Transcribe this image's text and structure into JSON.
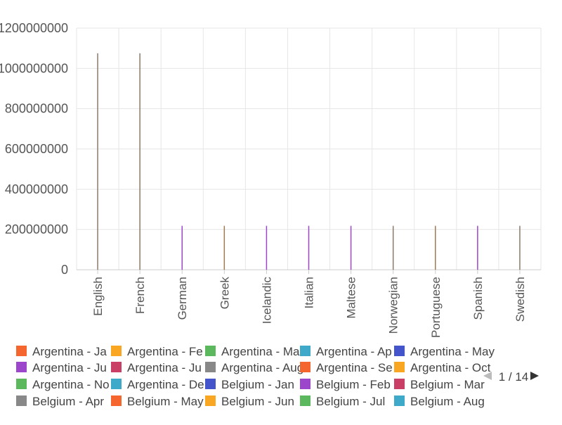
{
  "chart_data": {
    "type": "bar",
    "title": "",
    "xlabel": "",
    "ylabel": "",
    "ylim": [
      0,
      1200000000
    ],
    "yticks": [
      "0",
      "200000000",
      "400000000",
      "600000000",
      "800000000",
      "1000000000",
      "1200000000"
    ],
    "grid": true,
    "categories": [
      "English",
      "French",
      "German",
      "Greek",
      "Icelandic",
      "Italian",
      "Maltese",
      "Norwegian",
      "Portuguese",
      "Spanish",
      "Swedish"
    ],
    "values": [
      1075000000,
      1075000000,
      218000000,
      218000000,
      218000000,
      218000000,
      218000000,
      218000000,
      218000000,
      218000000,
      218000000
    ],
    "legend_placement": "bottom",
    "legend": [
      {
        "label": "Argentina - Ja",
        "color": "#f4662d"
      },
      {
        "label": "Argentina - Fe",
        "color": "#f9a723"
      },
      {
        "label": "Argentina - Ma",
        "color": "#5cb85c"
      },
      {
        "label": "Argentina - Ap",
        "color": "#3fa9c9"
      },
      {
        "label": "Argentina - May",
        "color": "#4455cc"
      },
      {
        "label": "Argentina - Ju",
        "color": "#9c46cc"
      },
      {
        "label": "Argentina - Ju",
        "color": "#c93f66"
      },
      {
        "label": "Argentina - Aug",
        "color": "#888888"
      },
      {
        "label": "Argentina - Se",
        "color": "#f4662d"
      },
      {
        "label": "Argentina - Oct",
        "color": "#f9a723"
      },
      {
        "label": "Argentina - No",
        "color": "#5cb85c"
      },
      {
        "label": "Argentina - De",
        "color": "#3fa9c9"
      },
      {
        "label": "Belgium - Jan",
        "color": "#4455cc"
      },
      {
        "label": "Belgium - Feb",
        "color": "#9c46cc"
      },
      {
        "label": "Belgium - Mar",
        "color": "#c93f66"
      },
      {
        "label": "Belgium - Apr",
        "color": "#888888"
      },
      {
        "label": "Belgium - May",
        "color": "#f4662d"
      },
      {
        "label": "Belgium - Jun",
        "color": "#f9a723"
      },
      {
        "label": "Belgium - Jul",
        "color": "#5cb85c"
      },
      {
        "label": "Belgium - Aug",
        "color": "#3fa9c9"
      }
    ],
    "pager": {
      "text": "1 / 14"
    },
    "bar_colors": [
      "#8a7a6a",
      "#8a7a6a",
      "#9c46cc",
      "#a07a50",
      "#9c46cc",
      "#9c46cc",
      "#9c46cc",
      "#8a7a6a",
      "#a07a50",
      "#9c46cc",
      "#8a7a6a"
    ]
  }
}
